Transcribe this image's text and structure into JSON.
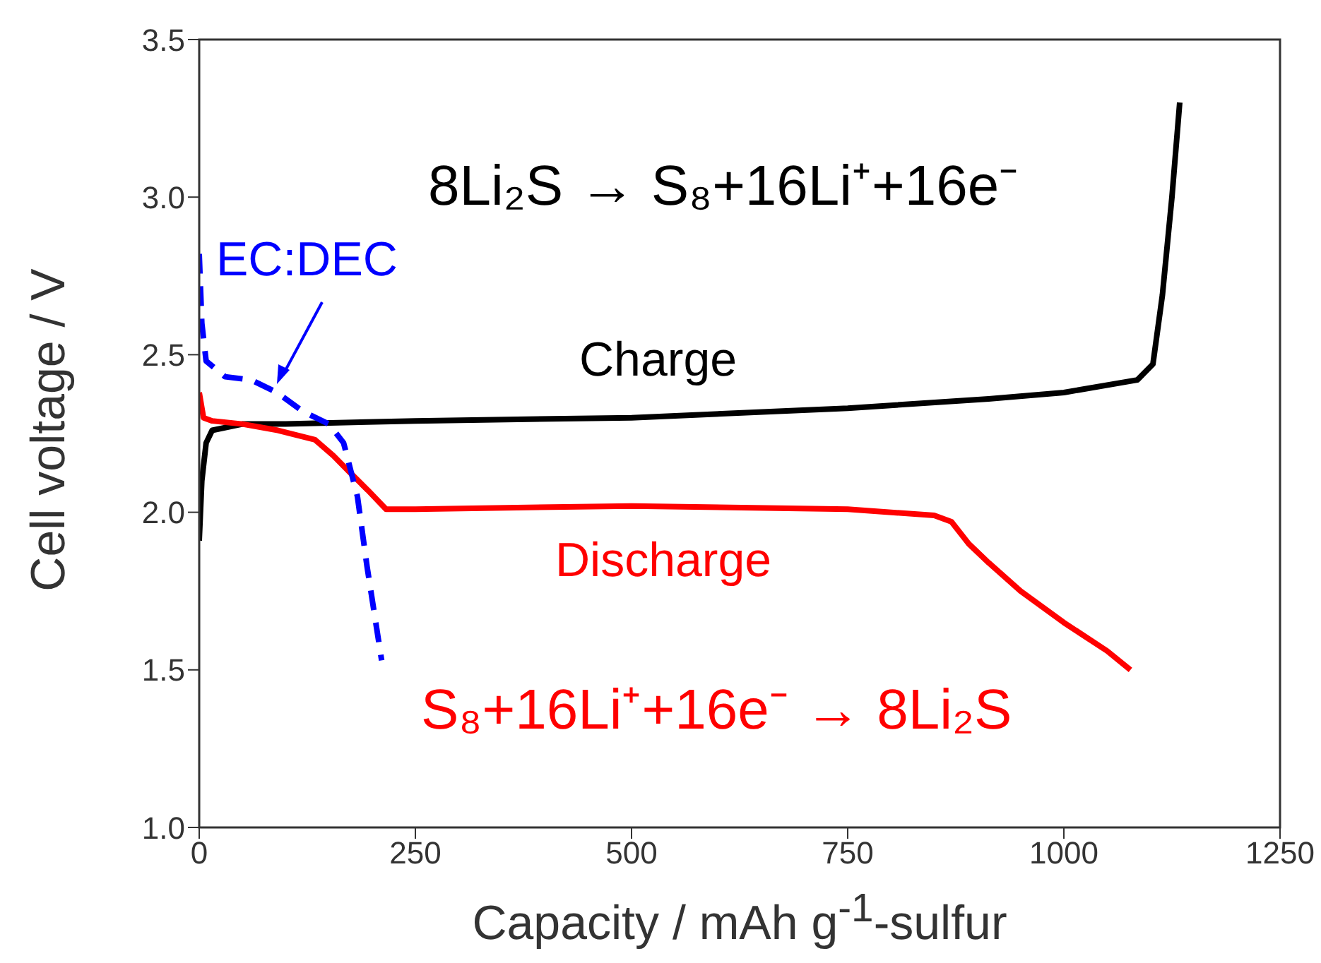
{
  "chart_data": {
    "type": "line",
    "xlabel": "Capacity / mAh g$^{-1}$-sulfur",
    "ylabel": "Cell voltage / V",
    "xlim": [
      0,
      1250
    ],
    "xticks": [
      0,
      250,
      500,
      750,
      1000,
      1250
    ],
    "ylim": [
      1.0,
      3.5
    ],
    "yticks": [
      {
        "value": 1.0,
        "label": "1.0"
      },
      {
        "value": 1.5,
        "label": "1.5"
      },
      {
        "value": 2.0,
        "label": "2.0"
      },
      {
        "value": 2.5,
        "label": "2.5"
      },
      {
        "value": 3.0,
        "label": "3.0"
      },
      {
        "value": 3.5,
        "label": "3.5"
      }
    ],
    "marker": "none",
    "series": [
      {
        "name": "Charge",
        "color": "#000000",
        "line_style": "solid",
        "x": [
          0,
          3,
          8,
          15,
          50,
          100,
          250,
          500,
          750,
          913,
          1000,
          1085,
          1103,
          1114,
          1125,
          1134
        ],
        "values": [
          1.91,
          2.1,
          2.22,
          2.26,
          2.28,
          2.28,
          2.29,
          2.3,
          2.33,
          2.36,
          2.38,
          2.42,
          2.47,
          2.69,
          3.0,
          3.3
        ]
      },
      {
        "name": "Discharge",
        "color": "#ff0000",
        "line_style": "solid",
        "x": [
          0,
          5,
          15,
          50,
          91,
          134,
          155,
          173,
          195,
          216,
          250,
          500,
          750,
          850,
          870,
          890,
          913,
          950,
          1000,
          1050,
          1077
        ],
        "values": [
          2.38,
          2.3,
          2.29,
          2.28,
          2.26,
          2.23,
          2.18,
          2.13,
          2.07,
          2.01,
          2.01,
          2.02,
          2.01,
          1.99,
          1.97,
          1.9,
          1.84,
          1.75,
          1.65,
          1.56,
          1.5
        ]
      },
      {
        "name": "EC:DEC",
        "color": "#0000ff",
        "line_style": "dashed",
        "x": [
          0,
          3,
          8,
          30,
          60,
          90,
          120,
          150,
          167,
          183,
          194,
          211
        ],
        "values": [
          2.82,
          2.6,
          2.48,
          2.43,
          2.42,
          2.38,
          2.32,
          2.28,
          2.22,
          2.05,
          1.83,
          1.53
        ]
      }
    ],
    "annotations": [
      "8Li₂S → S₈+16Li⁺+16e⁻",
      "S₈+16Li⁺+16e⁻ → 8Li₂S"
    ]
  }
}
